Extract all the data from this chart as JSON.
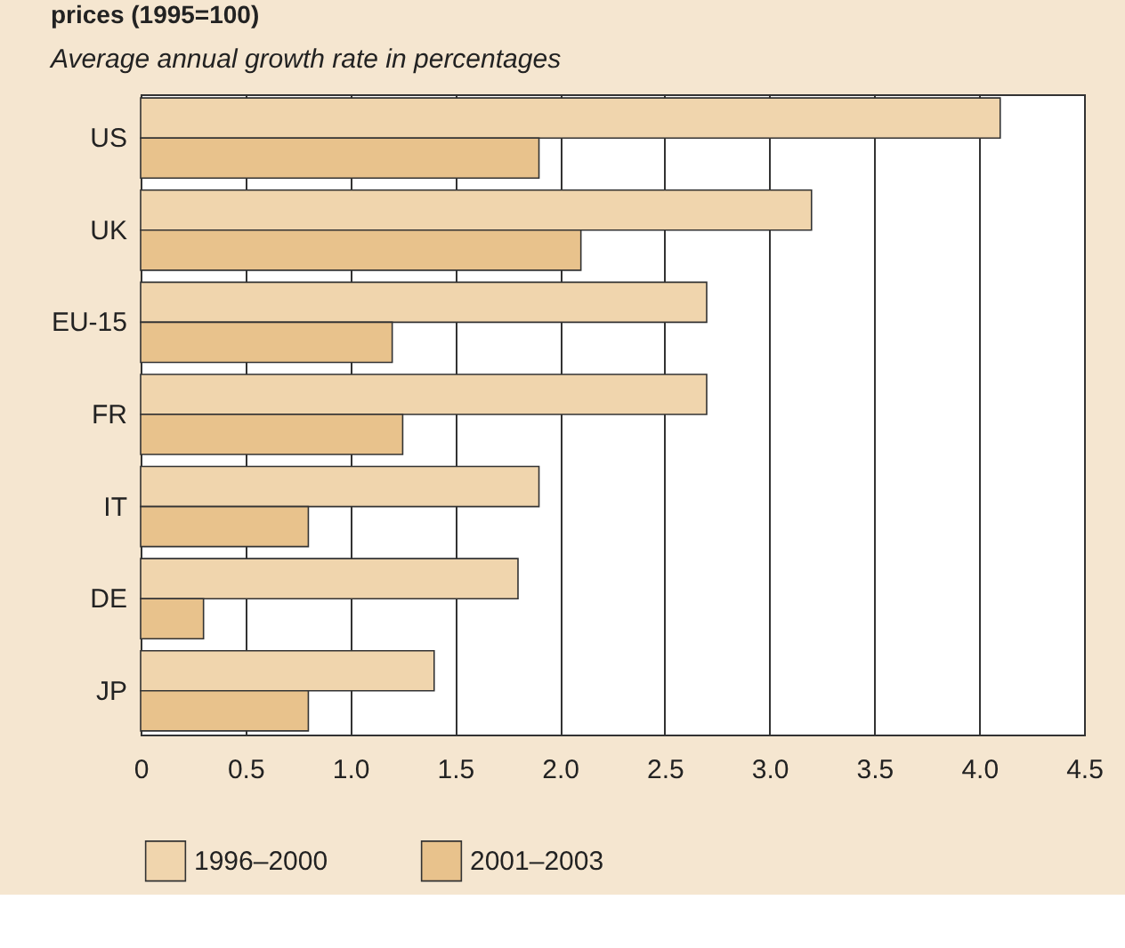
{
  "chart_data": {
    "type": "bar",
    "orientation": "horizontal",
    "title": "prices (1995=100)",
    "subtitle": "Average annual growth rate in percentages",
    "categories": [
      "US",
      "UK",
      "EU-15",
      "FR",
      "IT",
      "DE",
      "JP"
    ],
    "series": [
      {
        "name": "1996–2000",
        "color": "#f0d5ad",
        "values": [
          4.1,
          3.2,
          2.7,
          2.7,
          1.9,
          1.8,
          1.4
        ]
      },
      {
        "name": "2001–2003",
        "color": "#e8c28c",
        "values": [
          1.9,
          2.1,
          1.2,
          1.25,
          0.8,
          0.3,
          0.8
        ]
      }
    ],
    "xlim": [
      0,
      4.5
    ],
    "xticks": [
      0,
      0.5,
      {
        "value": 1,
        "label": "1.0"
      },
      1.5,
      {
        "value": 2,
        "label": "2.0"
      },
      2.5,
      {
        "value": 3,
        "label": "3.0"
      },
      3.5,
      {
        "value": 4,
        "label": "4.0"
      },
      4.5
    ],
    "grid": "x",
    "legend": "bottom"
  }
}
